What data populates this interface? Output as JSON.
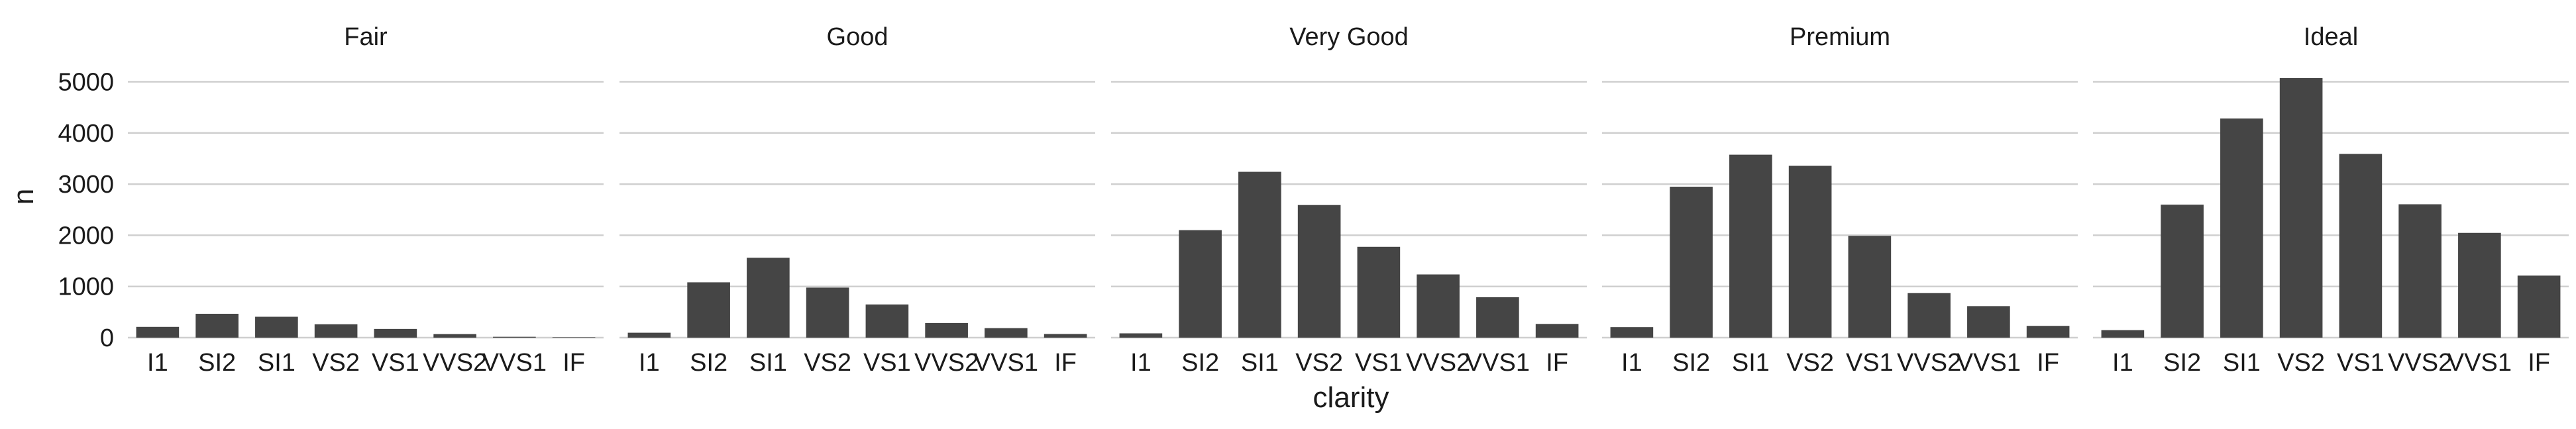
{
  "chart_data": {
    "type": "bar",
    "layout": "faceted",
    "xlabel": "clarity",
    "ylabel": "n",
    "ylim": [
      0,
      5200
    ],
    "yticks": [
      0,
      1000,
      2000,
      3000,
      4000,
      5000
    ],
    "grid": "horizontal",
    "categories": [
      "I1",
      "SI2",
      "SI1",
      "VS2",
      "VS1",
      "VVS2",
      "VVS1",
      "IF"
    ],
    "facets": [
      {
        "name": "Fair",
        "values": [
          210,
          466,
          408,
          261,
          170,
          69,
          17,
          9
        ]
      },
      {
        "name": "Good",
        "values": [
          96,
          1081,
          1560,
          978,
          648,
          286,
          186,
          71
        ]
      },
      {
        "name": "Very Good",
        "values": [
          84,
          2100,
          3240,
          2591,
          1775,
          1235,
          789,
          268
        ]
      },
      {
        "name": "Premium",
        "values": [
          205,
          2949,
          3575,
          3357,
          1989,
          870,
          616,
          230
        ]
      },
      {
        "name": "Ideal",
        "values": [
          146,
          2598,
          4282,
          5071,
          3589,
          2606,
          2047,
          1212
        ]
      }
    ]
  }
}
